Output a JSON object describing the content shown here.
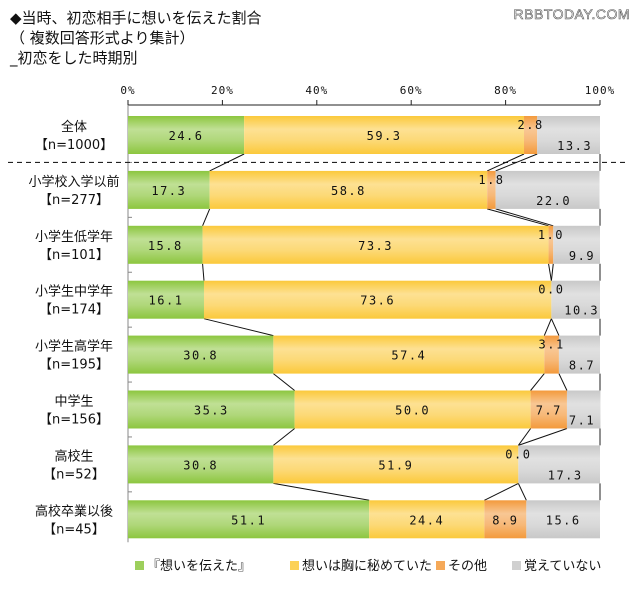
{
  "header": {
    "title_line1": "◆当時、初恋相手に想いを伝えた割合",
    "title_line2": "（ 複数回答形式より集計）",
    "title_line3": "_初恋をした時期別",
    "watermark": "RBBTODAY.COM"
  },
  "chart_data": {
    "type": "bar",
    "orientation": "horizontal",
    "stacked": true,
    "title": "◆当時、初恋相手に想いを伝えた割合（ 複数回答形式より集計）_初恋をした時期別",
    "xlim": [
      0,
      100
    ],
    "x_ticks": [
      "0%",
      "20%",
      "40%",
      "60%",
      "80%",
      "100%"
    ],
    "x_tick_values": [
      0,
      20,
      40,
      60,
      80,
      100
    ],
    "legend_position": "bottom",
    "categories": [
      {
        "name": "全体",
        "n": "【n=1000】"
      },
      {
        "name": "小学校入学以前",
        "n": "【n=277】"
      },
      {
        "name": "小学生低学年",
        "n": "【n=101】"
      },
      {
        "name": "小学生中学年",
        "n": "【n=174】"
      },
      {
        "name": "小学生高学年",
        "n": "【n=195】"
      },
      {
        "name": "中学生",
        "n": "【n=156】"
      },
      {
        "name": "高校生",
        "n": "【n=52】"
      },
      {
        "name": "高校卒業以後",
        "n": "【n=45】"
      }
    ],
    "series": [
      {
        "name": "『想いを伝えた』",
        "color": "#8cc63f",
        "values": [
          24.6,
          17.3,
          15.8,
          16.1,
          30.8,
          35.3,
          30.8,
          51.1
        ],
        "labels": [
          "24.6",
          "17.3",
          "15.8",
          "16.1",
          "30.8",
          "35.3",
          "30.8",
          "51.1"
        ]
      },
      {
        "name": "想いは胸に秘めていた",
        "color": "#fbc93b",
        "values": [
          59.3,
          58.8,
          73.3,
          73.6,
          57.4,
          50.0,
          51.9,
          24.4
        ],
        "labels": [
          "59.3",
          "58.8",
          "73.3",
          "73.6",
          "57.4",
          "50.0",
          "51.9",
          "24.4"
        ]
      },
      {
        "name": "その他",
        "color": "#f39a3c",
        "values": [
          2.8,
          1.8,
          1.0,
          0.0,
          3.1,
          7.7,
          0.0,
          8.9
        ],
        "labels": [
          "2.8",
          "1.8",
          "1.0",
          "0.0",
          "3.1",
          "7.7",
          "0.0",
          "8.9"
        ]
      },
      {
        "name": "覚えていない",
        "color": "#c8c8c8",
        "values": [
          13.3,
          22.0,
          9.9,
          10.3,
          8.7,
          7.1,
          17.3,
          15.6
        ],
        "labels": [
          "13.3",
          "22.0",
          "9.9",
          "10.3",
          "8.7",
          "7.1",
          "17.3",
          "15.6"
        ]
      }
    ]
  }
}
